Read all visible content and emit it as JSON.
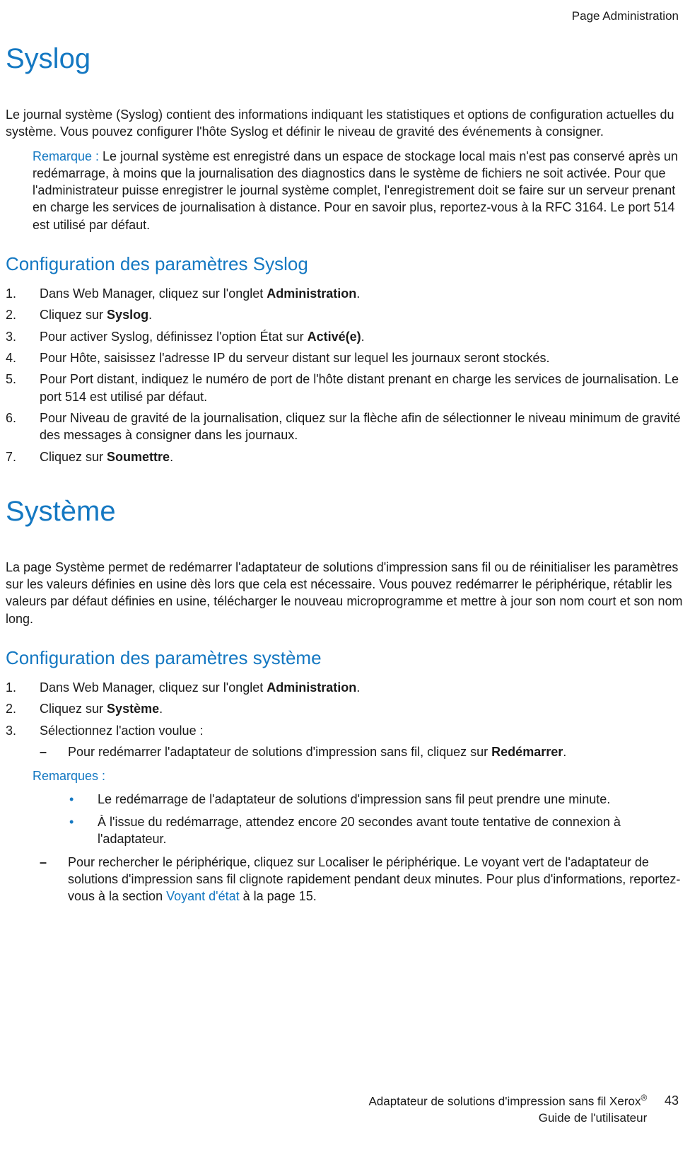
{
  "header": {
    "section_label": "Page Administration"
  },
  "syslog": {
    "title": "Syslog",
    "intro": "Le journal système (Syslog) contient des informations indiquant les statistiques et options de configuration actuelles du système. Vous pouvez configurer l'hôte Syslog et définir le niveau de gravité des événements à consigner.",
    "note_label": "Remarque : ",
    "note_text": "Le journal système est enregistré dans un espace de stockage local mais n'est pas conservé après un redémarrage, à moins que la journalisation des diagnostics dans le système de fichiers ne soit activée. Pour que l'administrateur puisse enregistrer le journal système complet, l'enregistrement doit se faire sur un serveur prenant en charge les services de journalisation à distance. Pour en savoir plus, reportez-vous à la RFC 3164. Le port 514 est utilisé par défaut.",
    "config_heading": "Configuration des paramètres Syslog",
    "steps": {
      "s1_pre": "Dans Web Manager, cliquez sur l'onglet ",
      "s1_bold": "Administration",
      "s1_post": ".",
      "s2_pre": "Cliquez sur ",
      "s2_bold": "Syslog",
      "s2_post": ".",
      "s3_pre": "Pour activer Syslog, définissez l'option État sur ",
      "s3_bold": "Activé(e)",
      "s3_post": ".",
      "s4": "Pour Hôte, saisissez l'adresse IP du serveur distant sur lequel les journaux seront stockés.",
      "s5": "Pour Port distant, indiquez le numéro de port de l'hôte distant prenant en charge les services de journalisation. Le port 514 est utilisé par défaut.",
      "s6": "Pour Niveau de gravité de la journalisation, cliquez sur la flèche afin de sélectionner le niveau minimum de gravité des messages à consigner dans les journaux.",
      "s7_pre": "Cliquez sur ",
      "s7_bold": "Soumettre",
      "s7_post": "."
    }
  },
  "systeme": {
    "title": "Système",
    "intro": "La page Système permet de redémarrer l'adaptateur de solutions d'impression sans fil ou de réinitialiser les paramètres sur les valeurs définies en usine dès lors que cela est nécessaire. Vous pouvez redémarrer le périphérique, rétablir les valeurs par défaut définies en usine, télécharger le nouveau microprogramme et mettre à jour son nom court et son nom long.",
    "config_heading": "Configuration des paramètres système",
    "steps": {
      "s1_pre": "Dans Web Manager, cliquez sur l'onglet ",
      "s1_bold": "Administration",
      "s1_post": ".",
      "s2_pre": "Cliquez sur ",
      "s2_bold": "Système",
      "s2_post": ".",
      "s3": "Sélectionnez l'action voulue :",
      "dash1_pre": "Pour redémarrer l'adaptateur de solutions d'impression sans fil, cliquez sur ",
      "dash1_bold": "Redémarrer",
      "dash1_post": ".",
      "notes_label": "Remarques :",
      "bullet1": "Le redémarrage de l'adaptateur de solutions d'impression sans fil peut prendre une minute.",
      "bullet2": "À l'issue du redémarrage, attendez encore 20 secondes avant toute tentative de connexion à l'adaptateur.",
      "dash2_pre": "Pour rechercher le périphérique, cliquez sur Localiser le périphérique. Le voyant vert de l'adaptateur de solutions d'impression sans fil clignote rapidement pendant deux minutes. Pour plus d'informations, reportez-vous à la section ",
      "dash2_link": "Voyant d'état",
      "dash2_post": " à la page 15."
    }
  },
  "footer": {
    "line1": "Adaptateur de solutions d'impression sans fil Xerox",
    "reg": "®",
    "line2": "Guide de l'utilisateur",
    "page": "43"
  }
}
